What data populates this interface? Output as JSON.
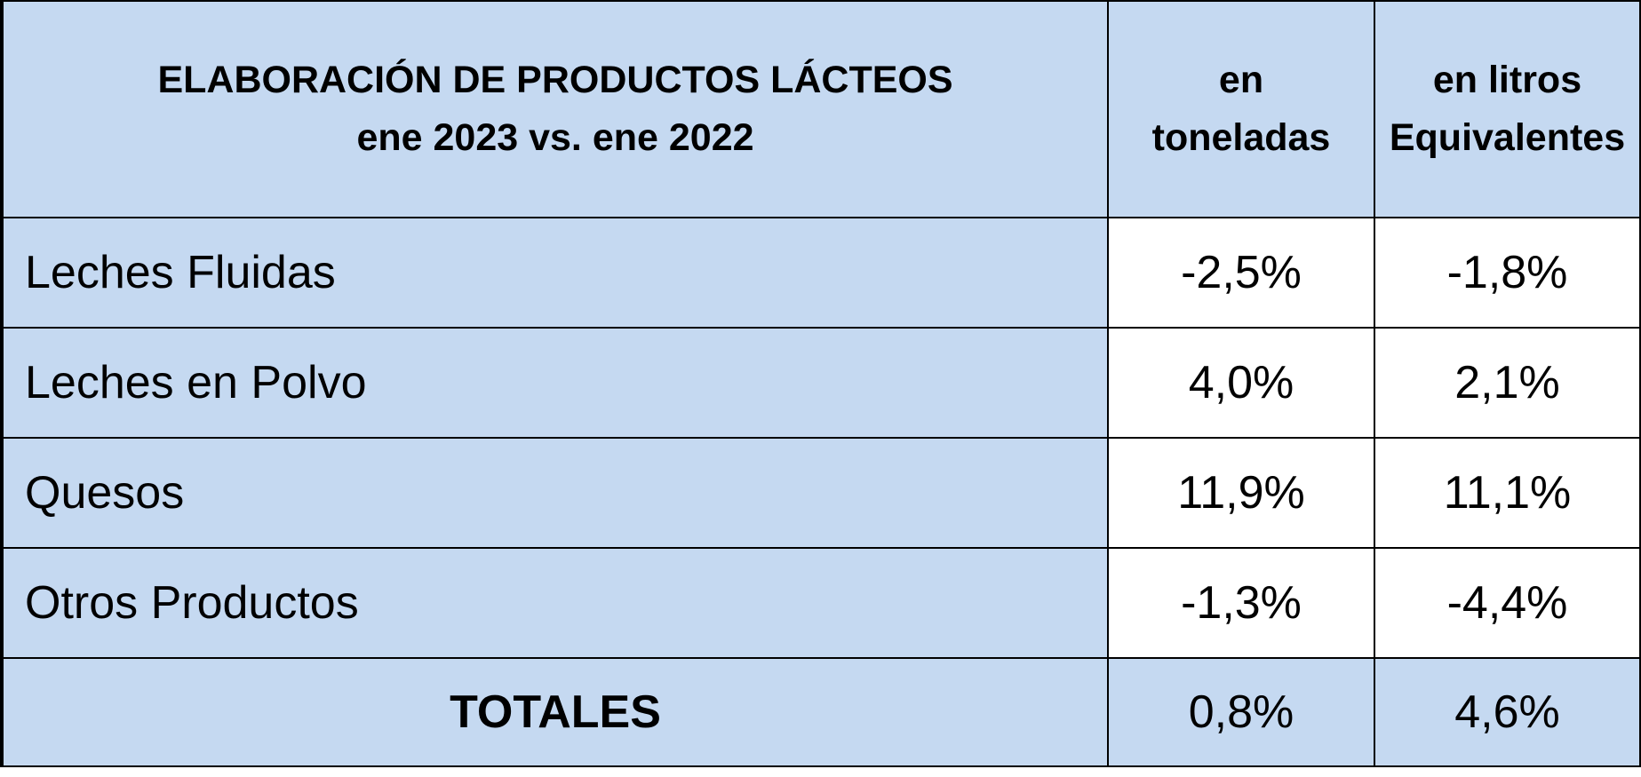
{
  "colors": {
    "header_fill": "#c5d9f1",
    "label_fill": "#c5d9f1",
    "value_fill": "#ffffff",
    "border": "#000000"
  },
  "chart_data": {
    "type": "table",
    "title_line1": "ELABORACIÓN DE PRODUCTOS LÁCTEOS",
    "title_line2": "ene 2023 vs. ene 2022",
    "columns": [
      {
        "line1": "en",
        "line2": "toneladas"
      },
      {
        "line1": "en litros",
        "line2": "Equivalentes"
      }
    ],
    "rows": [
      {
        "label": "Leches Fluidas",
        "toneladas": "-2,5%",
        "litros": "-1,8%"
      },
      {
        "label": "Leches en Polvo",
        "toneladas": "4,0%",
        "litros": "2,1%"
      },
      {
        "label": "Quesos",
        "toneladas": "11,9%",
        "litros": "11,1%"
      },
      {
        "label": "Otros Productos",
        "toneladas": "-1,3%",
        "litros": "-4,4%"
      }
    ],
    "total": {
      "label": "TOTALES",
      "toneladas": "0,8%",
      "litros": "4,6%"
    }
  }
}
